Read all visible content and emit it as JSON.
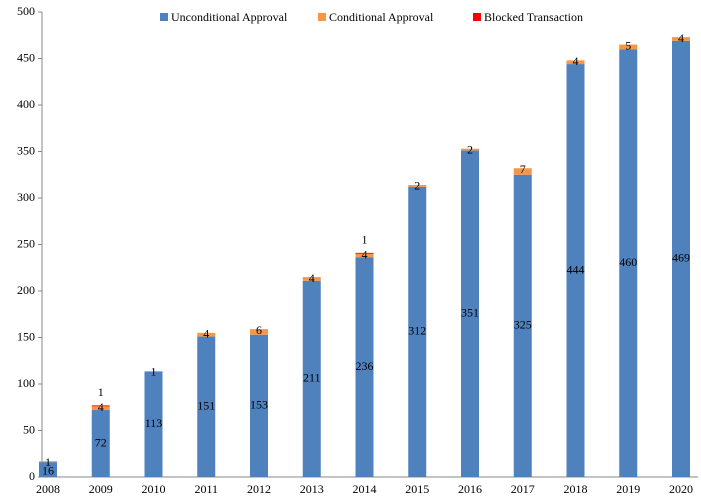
{
  "chart_data": {
    "type": "stacked_bar",
    "categories": [
      "2008",
      "2009",
      "2010",
      "2011",
      "2012",
      "2013",
      "2014",
      "2015",
      "2016",
      "2017",
      "2018",
      "2019",
      "2020"
    ],
    "series": [
      {
        "name": "Unconditional Approval",
        "color": "#4f81bd",
        "values": [
          16,
          72,
          113,
          151,
          153,
          211,
          236,
          312,
          351,
          325,
          444,
          460,
          469
        ]
      },
      {
        "name": "Conditional Approval",
        "color": "#f79646",
        "values": [
          1,
          4,
          1,
          4,
          6,
          4,
          4,
          2,
          2,
          7,
          4,
          5,
          4
        ]
      },
      {
        "name": "Blocked Transaction",
        "color": "#ff0000",
        "values": [
          null,
          1,
          null,
          null,
          null,
          null,
          1,
          null,
          null,
          null,
          null,
          null,
          null
        ]
      }
    ],
    "ylim": [
      0,
      500
    ],
    "yticks": [
      0,
      50,
      100,
      150,
      200,
      250,
      300,
      350,
      400,
      450,
      500
    ],
    "grid": false,
    "legend": "top"
  }
}
